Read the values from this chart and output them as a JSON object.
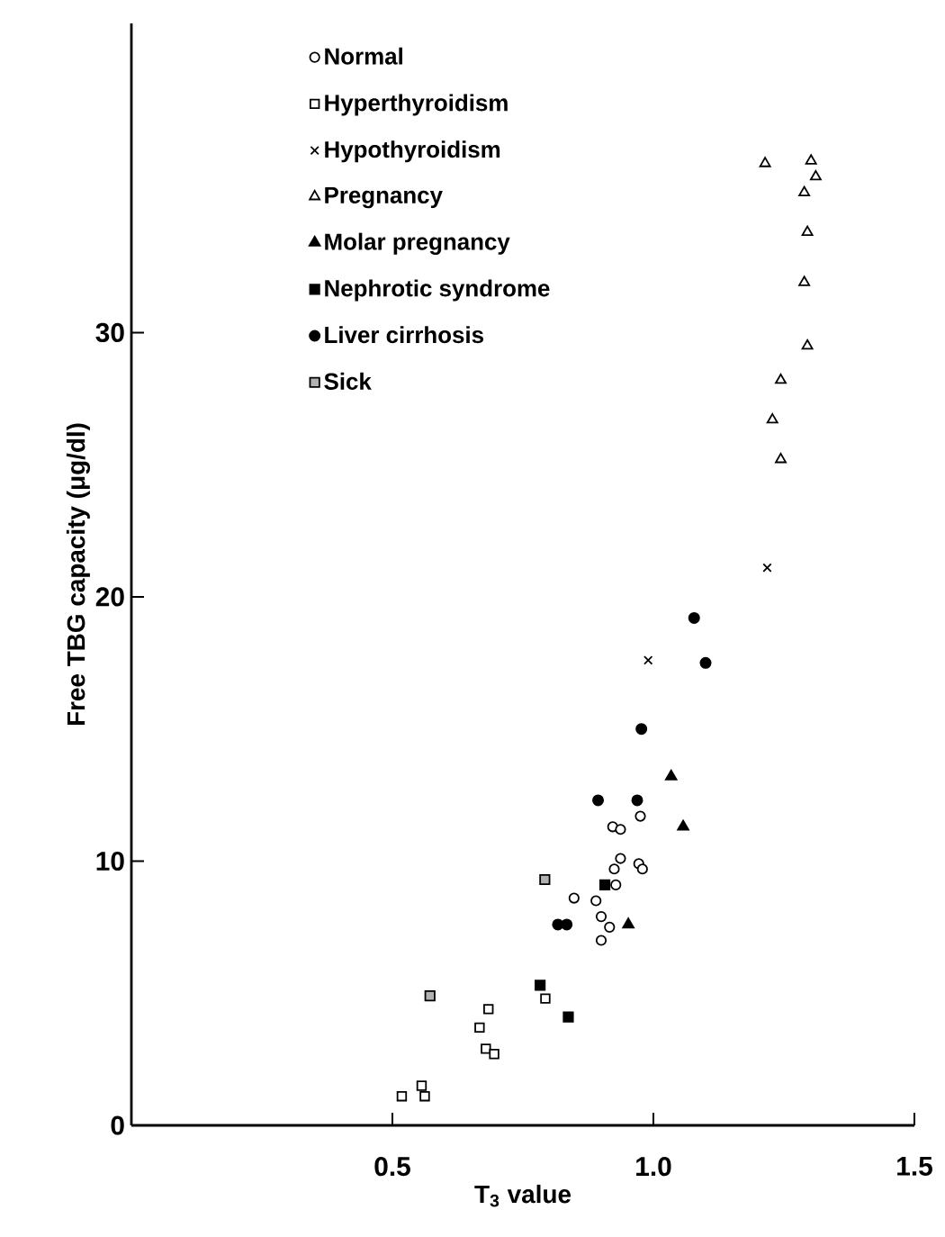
{
  "chart_data": {
    "type": "scatter",
    "xlabel": "T$_{3}$ value",
    "ylabel": "Free TBG capacity (μg/dl)",
    "xlim": [
      0,
      1.5
    ],
    "ylim": [
      0,
      41.7
    ],
    "xticks": [
      {
        "value": 0.5,
        "label": "0.5"
      },
      {
        "value": 1.0,
        "label": "1.0"
      },
      {
        "value": 1.5,
        "label": "1.5"
      }
    ],
    "yticks": [
      0,
      10,
      20,
      30
    ],
    "legend": "top left",
    "grid": false,
    "series": [
      {
        "name": "Normal",
        "color": "#000000",
        "marker": "circle",
        "x": [
          0.975,
          0.922,
          0.937,
          0.937,
          0.925,
          0.928,
          0.972,
          0.979,
          0.848,
          0.89,
          0.9,
          0.916,
          0.9
        ],
        "values": [
          11.7,
          11.3,
          11.2,
          10.1,
          9.7,
          9.1,
          9.9,
          9.7,
          8.6,
          8.5,
          7.9,
          7.5,
          7.0
        ]
      },
      {
        "name": "Hyperthyroidism",
        "color": "#000000",
        "marker": "square",
        "x": [
          0.793,
          0.684,
          0.667,
          0.679,
          0.695,
          0.518,
          0.556,
          0.562
        ],
        "values": [
          4.8,
          4.4,
          3.7,
          2.9,
          2.7,
          1.1,
          1.5,
          1.1
        ]
      },
      {
        "name": "Hypothyroidism",
        "color": "#000000",
        "marker": "cross",
        "x": [
          1.218,
          0.99
        ],
        "values": [
          21.1,
          17.6
        ]
      },
      {
        "name": "Pregnancy",
        "color": "#000000",
        "marker": "triangle",
        "x": [
          1.214,
          1.302,
          1.311,
          1.289,
          1.295,
          1.289,
          1.295,
          1.244,
          1.228,
          1.244
        ],
        "values": [
          36.4,
          36.5,
          35.9,
          35.3,
          33.8,
          31.9,
          29.5,
          28.2,
          26.7,
          25.2
        ]
      },
      {
        "name": "Molar pregnancy",
        "color": "#000000",
        "marker": "triangle-filled",
        "x": [
          1.034,
          1.057,
          0.952
        ],
        "values": [
          13.2,
          11.3,
          7.6
        ]
      },
      {
        "name": "Nephrotic syndrome",
        "color": "#000000",
        "marker": "square-filled",
        "x": [
          0.907,
          0.783,
          0.837
        ],
        "values": [
          9.1,
          5.3,
          4.1
        ]
      },
      {
        "name": "Liver cirrhosis",
        "color": "#000000",
        "marker": "circle-filled",
        "x": [
          1.078,
          1.1,
          0.977,
          0.894,
          0.969,
          0.817,
          0.834
        ],
        "values": [
          19.2,
          17.5,
          15.0,
          12.3,
          12.3,
          7.6,
          7.6
        ]
      },
      {
        "name": "Sick",
        "color": "#000000",
        "marker": "square-dotted",
        "x": [
          0.792,
          0.572
        ],
        "values": [
          9.3,
          4.9
        ]
      }
    ]
  }
}
